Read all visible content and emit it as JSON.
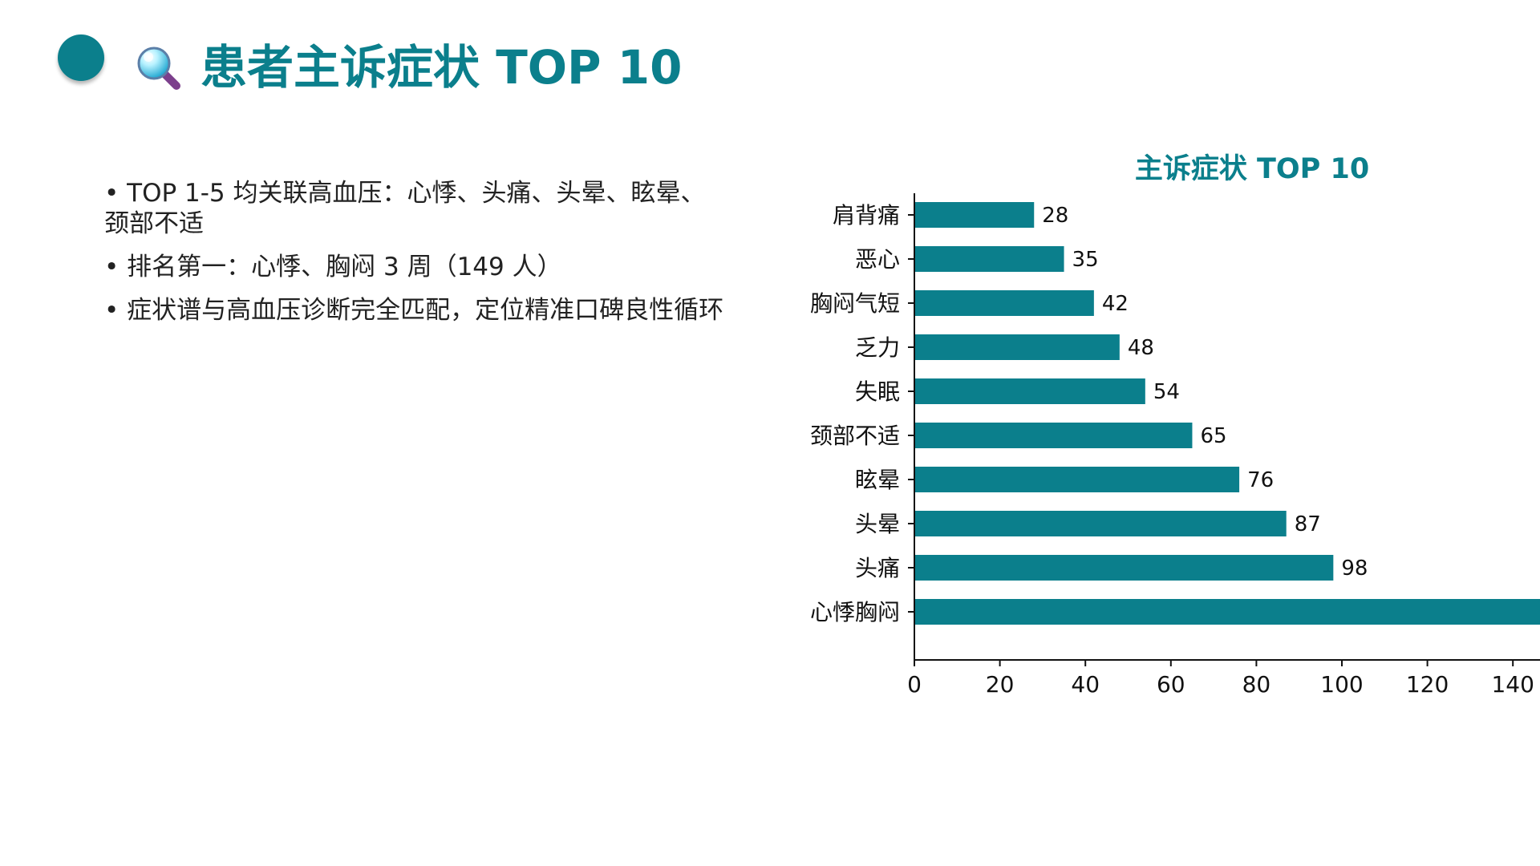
{
  "page": {
    "title": "患者主诉症状 TOP 10",
    "accent_color": "#0b7f8c",
    "icons": [
      "decorative-dot-icon",
      "search-icon"
    ]
  },
  "summary": {
    "bullets": [
      "TOP 1-5 均关联高血压：心悸、头痛、头晕、眩晕、颈部不适",
      "排名第一：心悸、胸闷 3 周（149 人）",
      "症状谱与高血压诊断完全匹配，定位精准口碑良性循环"
    ]
  },
  "chart_data": {
    "type": "bar",
    "orientation": "horizontal",
    "title": "主诉症状 TOP 10",
    "categories": [
      "心悸胸闷",
      "头痛",
      "头晕",
      "眩晕",
      "颈部不适",
      "失眠",
      "乏力",
      "胸闷气短",
      "恶心",
      "肩背痛"
    ],
    "values": [
      149,
      98,
      87,
      76,
      65,
      54,
      48,
      42,
      35,
      28
    ],
    "data_labels": [
      "",
      "98",
      "87",
      "76",
      "65",
      "54",
      "48",
      "42",
      "35",
      "28"
    ],
    "xlabel": "",
    "ylabel": "",
    "xlim": [
      0,
      150
    ],
    "x_ticks": [
      0,
      20,
      40,
      60,
      80,
      100,
      120,
      140
    ],
    "grid": false,
    "legend": "none",
    "bar_color": "#0b7f8c"
  }
}
